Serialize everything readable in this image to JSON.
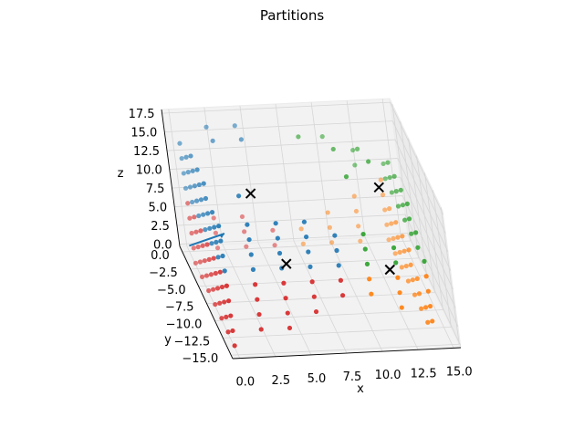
{
  "chart_data": {
    "type": "scatter",
    "title": "Partitions",
    "xlabel": "x",
    "ylabel": "y",
    "zlabel": "z",
    "xlim": [
      -0.5,
      15.5
    ],
    "ylim": [
      -15.5,
      0.8
    ],
    "zlim": [
      -0.3,
      18
    ],
    "xticks": [
      "0.0",
      "2.5",
      "5.0",
      "7.5",
      "10.0",
      "12.5",
      "15.0"
    ],
    "xtick_values": [
      0,
      2.5,
      5,
      7.5,
      10,
      12.5,
      15
    ],
    "yticks": [
      "0.0",
      "−2.5",
      "−5.0",
      "−7.5",
      "−10.0",
      "−12.5",
      "−15.0"
    ],
    "ytick_values": [
      0,
      -2.5,
      -5,
      -7.5,
      -10,
      -12.5,
      -15
    ],
    "zticks": [
      "0.0",
      "2.5",
      "5.0",
      "7.5",
      "10.0",
      "12.5",
      "15.0",
      "17.5"
    ],
    "ztick_values": [
      0,
      2.5,
      5,
      7.5,
      10,
      12.5,
      15,
      17.5
    ],
    "grid": true,
    "projection": "3d",
    "series": [
      {
        "color": "#1f77b4",
        "points": [
          [
            0,
            -2,
            10
          ],
          [
            0,
            -4,
            10
          ],
          [
            0,
            -6,
            10
          ],
          [
            0,
            -8,
            10
          ],
          [
            0,
            -10,
            10
          ],
          [
            0,
            -12,
            10
          ],
          [
            0,
            -14,
            10
          ],
          [
            0,
            -2,
            12
          ],
          [
            0,
            -4,
            12
          ],
          [
            0,
            -6,
            12
          ],
          [
            0,
            -8,
            12
          ],
          [
            0,
            -10,
            12
          ],
          [
            0,
            -12,
            12
          ],
          [
            0,
            -14,
            12
          ],
          [
            0,
            -2,
            14
          ],
          [
            0,
            -4,
            14
          ],
          [
            0,
            -6,
            14
          ],
          [
            0,
            -8,
            14
          ],
          [
            0,
            -10,
            14
          ],
          [
            0,
            -12,
            14
          ],
          [
            0,
            -14,
            14
          ],
          [
            0,
            -2,
            16
          ],
          [
            0,
            -4,
            16
          ],
          [
            0,
            -6,
            16
          ],
          [
            0,
            -8,
            16
          ],
          [
            0,
            -10,
            16
          ],
          [
            0,
            -12,
            16
          ],
          [
            0,
            -14,
            16
          ],
          [
            0,
            -6,
            18
          ],
          [
            0,
            -8,
            18
          ],
          [
            0,
            -10,
            18
          ],
          [
            2,
            -14,
            10
          ],
          [
            2,
            -14,
            12
          ],
          [
            2,
            -14,
            14
          ],
          [
            2,
            -14,
            16
          ],
          [
            4,
            -14,
            10
          ],
          [
            4,
            -14,
            12
          ],
          [
            4,
            -14,
            14
          ],
          [
            4,
            -14,
            16
          ],
          [
            6,
            -14,
            10
          ],
          [
            6,
            -14,
            12
          ],
          [
            6,
            -14,
            14
          ],
          [
            6,
            -14,
            16
          ],
          [
            8,
            -14,
            10
          ],
          [
            8,
            -14,
            12
          ],
          [
            8,
            -14,
            14
          ],
          [
            2,
            -2,
            18
          ],
          [
            2,
            -4,
            18
          ],
          [
            4,
            -2,
            18
          ],
          [
            4,
            -4,
            18
          ],
          [
            2,
            -12,
            18
          ]
        ]
      },
      {
        "color": "#2ca02c",
        "points": [
          [
            10,
            -14,
            10
          ],
          [
            10,
            -14,
            12
          ],
          [
            10,
            -14,
            14
          ],
          [
            12,
            -14,
            10
          ],
          [
            12,
            -14,
            12
          ],
          [
            14,
            -14,
            10
          ],
          [
            14,
            -12,
            10
          ],
          [
            14,
            -10,
            10
          ],
          [
            14,
            -8,
            10
          ],
          [
            14,
            -6,
            10
          ],
          [
            14,
            -4,
            10
          ],
          [
            14,
            -12,
            12
          ],
          [
            14,
            -10,
            12
          ],
          [
            14,
            -8,
            12
          ],
          [
            14,
            -6,
            12
          ],
          [
            14,
            -4,
            12
          ],
          [
            14,
            -10,
            14
          ],
          [
            14,
            -8,
            14
          ],
          [
            14,
            -6,
            14
          ],
          [
            14,
            -4,
            14
          ],
          [
            12,
            -2,
            12
          ],
          [
            14,
            -2,
            10
          ],
          [
            14,
            -2,
            12
          ],
          [
            12,
            -2,
            14
          ],
          [
            10,
            -2,
            16
          ],
          [
            12,
            -4,
            16
          ],
          [
            10,
            -6,
            18
          ],
          [
            12,
            -8,
            18
          ],
          [
            8,
            -4,
            18
          ],
          [
            10,
            -10,
            18
          ]
        ]
      },
      {
        "color": "#d62728",
        "points": [
          [
            0,
            -2,
            0
          ],
          [
            0,
            -4,
            0
          ],
          [
            0,
            -6,
            0
          ],
          [
            0,
            -8,
            0
          ],
          [
            0,
            -10,
            0
          ],
          [
            0,
            -12,
            0
          ],
          [
            0,
            -14,
            0
          ],
          [
            0,
            -2,
            2
          ],
          [
            0,
            -4,
            2
          ],
          [
            0,
            -6,
            2
          ],
          [
            0,
            -8,
            2
          ],
          [
            0,
            -10,
            2
          ],
          [
            0,
            -12,
            2
          ],
          [
            0,
            -14,
            2
          ],
          [
            0,
            -2,
            4
          ],
          [
            0,
            -4,
            4
          ],
          [
            0,
            -6,
            4
          ],
          [
            0,
            -8,
            4
          ],
          [
            0,
            -10,
            4
          ],
          [
            0,
            -12,
            4
          ],
          [
            0,
            -14,
            4
          ],
          [
            0,
            -2,
            6
          ],
          [
            0,
            -4,
            6
          ],
          [
            0,
            -6,
            6
          ],
          [
            0,
            -8,
            6
          ],
          [
            0,
            -10,
            6
          ],
          [
            0,
            -12,
            6
          ],
          [
            0,
            -14,
            6
          ],
          [
            0,
            -2,
            8
          ],
          [
            0,
            -4,
            8
          ],
          [
            0,
            -6,
            8
          ],
          [
            0,
            -8,
            8
          ],
          [
            0,
            -10,
            8
          ],
          [
            0,
            -12,
            8
          ],
          [
            0,
            -14,
            8
          ],
          [
            2,
            0,
            0
          ],
          [
            4,
            0,
            0
          ],
          [
            6,
            0,
            0
          ],
          [
            2,
            0,
            2
          ],
          [
            4,
            0,
            2
          ],
          [
            6,
            0,
            2
          ],
          [
            2,
            0,
            4
          ],
          [
            4,
            0,
            4
          ],
          [
            2,
            -14,
            2
          ],
          [
            2,
            -14,
            4
          ],
          [
            2,
            -14,
            6
          ],
          [
            2,
            -14,
            8
          ],
          [
            4,
            -14,
            2
          ],
          [
            4,
            -14,
            4
          ],
          [
            4,
            -14,
            6
          ],
          [
            4,
            -14,
            8
          ],
          [
            6,
            -14,
            4
          ],
          [
            6,
            -14,
            6
          ],
          [
            6,
            -14,
            8
          ],
          [
            8,
            -14,
            6
          ],
          [
            8,
            -14,
            8
          ]
        ]
      },
      {
        "color": "#ff7f0e",
        "points": [
          [
            8,
            0,
            0
          ],
          [
            10,
            0,
            0
          ],
          [
            12,
            0,
            0
          ],
          [
            14,
            0,
            0
          ],
          [
            8,
            0,
            2
          ],
          [
            10,
            0,
            2
          ],
          [
            12,
            0,
            2
          ],
          [
            14,
            0,
            2
          ],
          [
            10,
            0,
            4
          ],
          [
            12,
            0,
            4
          ],
          [
            14,
            0,
            4
          ],
          [
            12,
            0,
            6
          ],
          [
            14,
            0,
            6
          ],
          [
            14,
            0,
            8
          ],
          [
            14,
            -2,
            0
          ],
          [
            14,
            -4,
            0
          ],
          [
            14,
            -6,
            0
          ],
          [
            14,
            -8,
            0
          ],
          [
            14,
            -10,
            0
          ],
          [
            14,
            -12,
            0
          ],
          [
            14,
            -2,
            2
          ],
          [
            14,
            -4,
            2
          ],
          [
            14,
            -6,
            2
          ],
          [
            14,
            -8,
            2
          ],
          [
            14,
            -10,
            2
          ],
          [
            14,
            -12,
            2
          ],
          [
            14,
            -2,
            4
          ],
          [
            14,
            -4,
            4
          ],
          [
            14,
            -6,
            4
          ],
          [
            14,
            -8,
            4
          ],
          [
            14,
            -10,
            4
          ],
          [
            14,
            -2,
            6
          ],
          [
            14,
            -4,
            6
          ],
          [
            14,
            -6,
            6
          ],
          [
            14,
            -8,
            6
          ],
          [
            14,
            -14,
            2
          ],
          [
            14,
            -14,
            4
          ],
          [
            14,
            -14,
            6
          ],
          [
            12,
            -14,
            4
          ],
          [
            12,
            -14,
            6
          ],
          [
            12,
            -14,
            8
          ],
          [
            10,
            -14,
            6
          ],
          [
            10,
            -14,
            8
          ],
          [
            14,
            -14,
            8
          ]
        ]
      }
    ],
    "centroids": {
      "marker": "x",
      "color": "#000000",
      "points": [
        [
          3.5,
          -8,
          14.5
        ],
        [
          12.5,
          -8,
          14.5
        ],
        [
          5.5,
          -7,
          4
        ],
        [
          12.5,
          -8,
          3.5
        ]
      ]
    },
    "arrow": {
      "color": "#1f77b4"
    }
  }
}
